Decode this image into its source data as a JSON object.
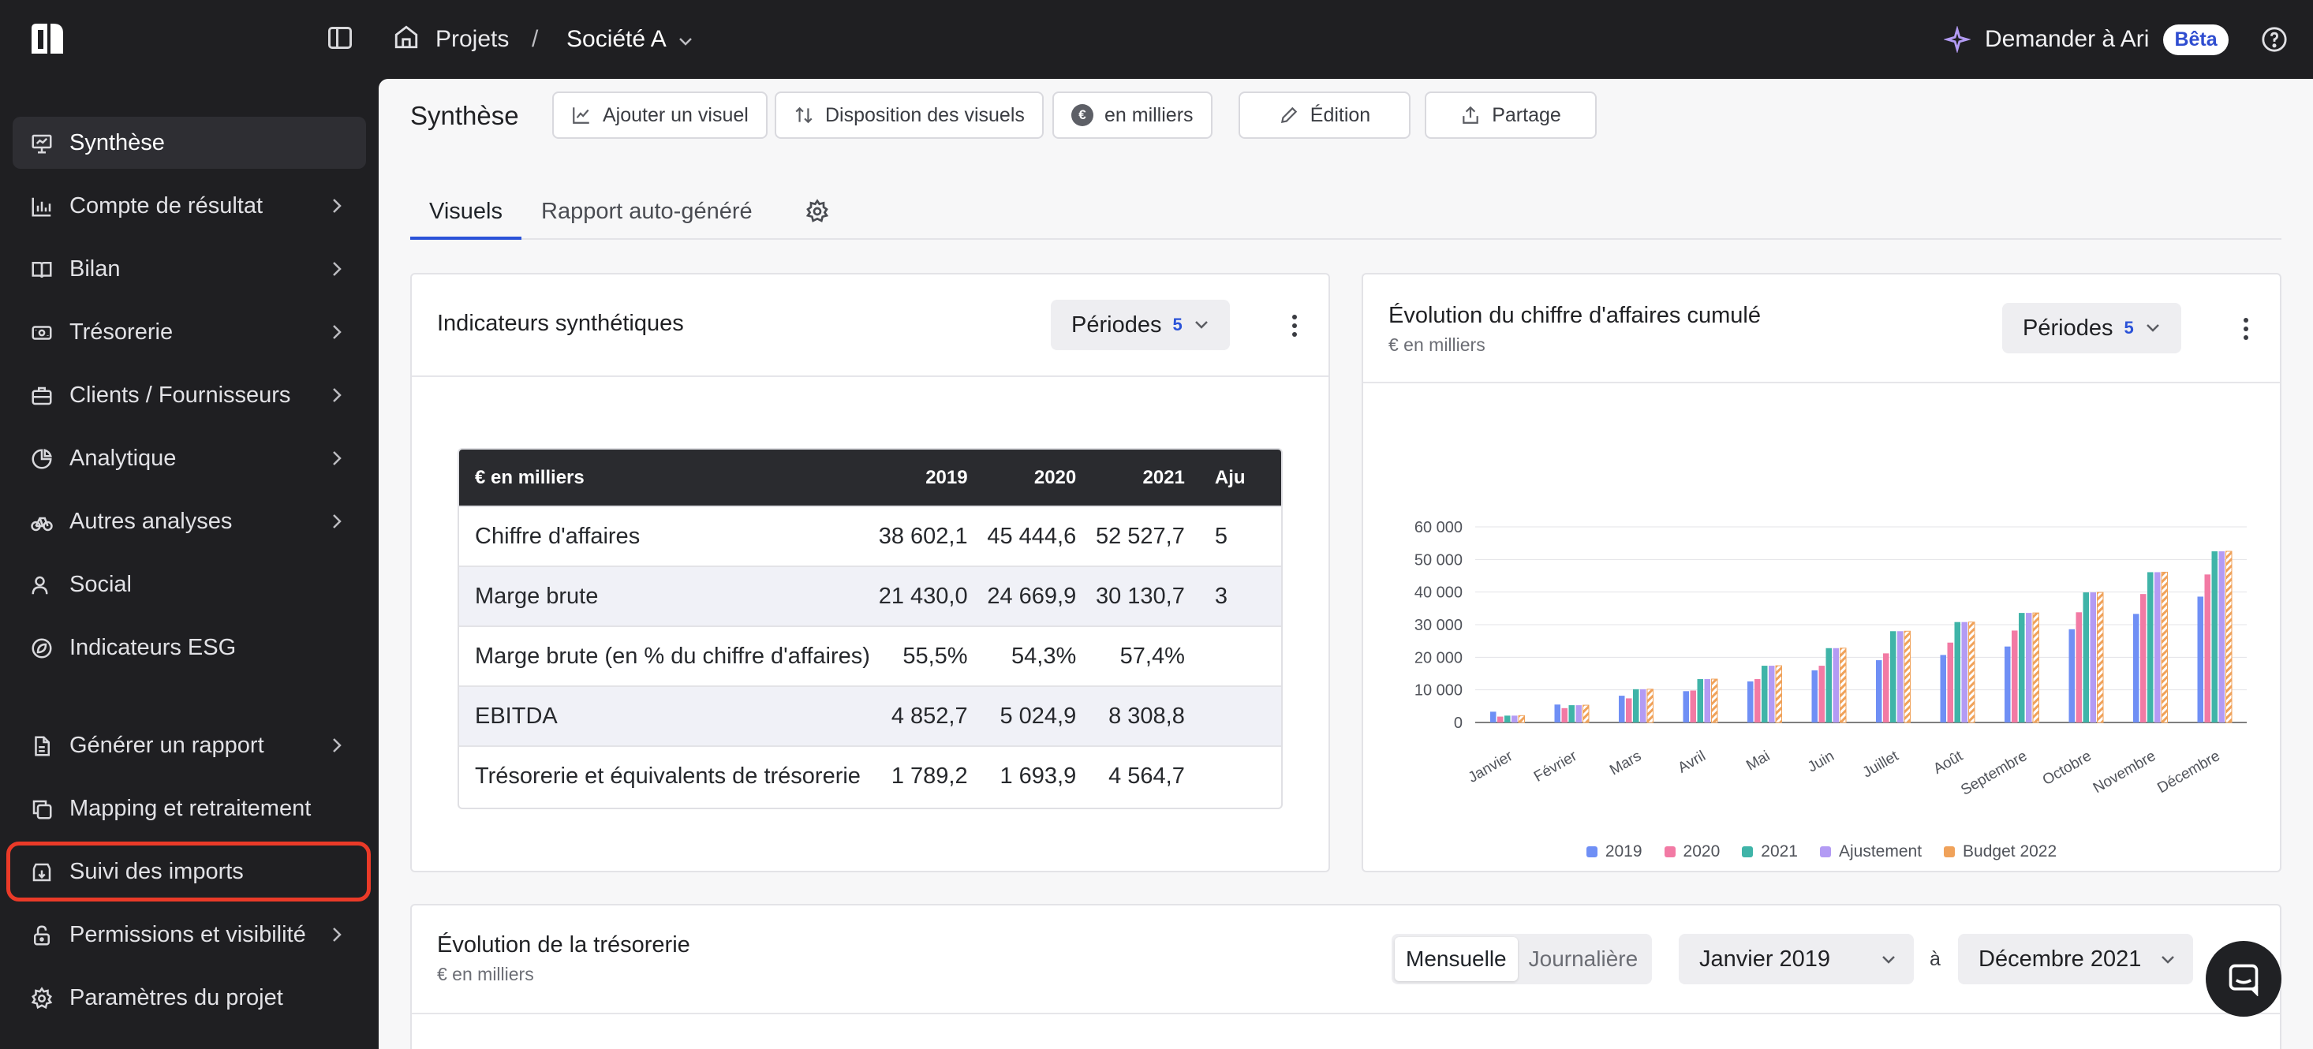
{
  "topbar": {
    "breadcrumb_projects": "Projets",
    "breadcrumb_separator": "/",
    "breadcrumb_company": "Société A",
    "ask_label": "Demander à Ari",
    "beta_label": "Bêta"
  },
  "sidebar": {
    "items": [
      {
        "label": "Synthèse",
        "icon": "presentation-icon",
        "chevron": false,
        "active": true
      },
      {
        "label": "Compte de résultat",
        "icon": "bar-chart-icon",
        "chevron": true
      },
      {
        "label": "Bilan",
        "icon": "book-icon",
        "chevron": true
      },
      {
        "label": "Trésorerie",
        "icon": "banknote-icon",
        "chevron": true
      },
      {
        "label": "Clients / Fournisseurs",
        "icon": "briefcase-icon",
        "chevron": true
      },
      {
        "label": "Analytique",
        "icon": "pie-chart-icon",
        "chevron": true
      },
      {
        "label": "Autres analyses",
        "icon": "bike-icon",
        "chevron": true
      },
      {
        "label": "Social",
        "icon": "users-icon",
        "chevron": false
      },
      {
        "label": "Indicateurs ESG",
        "icon": "leaf-icon",
        "chevron": false
      },
      {
        "label": "Générer un rapport",
        "icon": "file-icon",
        "chevron": true
      },
      {
        "label": "Mapping et retraitement",
        "icon": "copy-icon",
        "chevron": false
      },
      {
        "label": "Suivi des imports",
        "icon": "import-icon",
        "chevron": false,
        "highlighted": true
      },
      {
        "label": "Permissions et visibilité",
        "icon": "lock-icon",
        "chevron": true
      },
      {
        "label": "Paramètres du projet",
        "icon": "gear-icon",
        "chevron": false
      }
    ]
  },
  "toolbar": {
    "title": "Synthèse",
    "add_visual": "Ajouter un visuel",
    "layout": "Disposition des visuels",
    "unit_badge": "€",
    "unit": "en milliers",
    "edit": "Édition",
    "share": "Partage"
  },
  "tabs": {
    "visuals": "Visuels",
    "report": "Rapport auto-généré"
  },
  "indicators_card": {
    "title": "Indicateurs synthétiques",
    "periods_label": "Périodes",
    "periods_count": "5",
    "table": {
      "headers": [
        "€ en milliers",
        "2019",
        "2020",
        "2021",
        "Aju"
      ],
      "rows": [
        [
          "Chiffre d'affaires",
          "38 602,1",
          "45 444,6",
          "52 527,7",
          "5"
        ],
        [
          "Marge brute",
          "21 430,0",
          "24 669,9",
          "30 130,7",
          "3"
        ],
        [
          "Marge brute (en % du chiffre d'affaires)",
          "55,5%",
          "54,3%",
          "57,4%",
          ""
        ],
        [
          "EBITDA",
          "4 852,7",
          "5 024,9",
          "8 308,8",
          ""
        ],
        [
          "Trésorerie et équivalents de trésorerie",
          "1 789,2",
          "1 693,9",
          "4 564,7",
          ""
        ]
      ]
    }
  },
  "revenue_card": {
    "title": "Évolution du chiffre d'affaires cumulé",
    "subtitle": "€ en milliers",
    "periods_label": "Périodes",
    "periods_count": "5"
  },
  "cash_card": {
    "title": "Évolution de la trésorerie",
    "subtitle": "€ en milliers",
    "mode_monthly": "Mensuelle",
    "mode_daily": "Journalière",
    "from": "Janvier 2019",
    "to_label": "à",
    "to": "Décembre 2021"
  },
  "colors": {
    "accent": "#2a52d8",
    "highlight": "#ea3a28"
  },
  "chart_data": {
    "type": "bar",
    "title": "Évolution du chiffre d'affaires cumulé",
    "subtitle": "€ en milliers",
    "categories": [
      "Janvier",
      "Février",
      "Mars",
      "Avril",
      "Mai",
      "Juin",
      "Juillet",
      "Août",
      "Septembre",
      "Octobre",
      "Novembre",
      "Décembre"
    ],
    "ylim": [
      0,
      60000
    ],
    "yticks": [
      "0",
      "10 000",
      "20 000",
      "30 000",
      "40 000",
      "50 000",
      "60 000"
    ],
    "grid": true,
    "legend_position": "bottom",
    "series": [
      {
        "name": "2019",
        "color": "#6f8ff5",
        "values": [
          3300,
          5500,
          8200,
          9600,
          12600,
          16000,
          19100,
          20700,
          23300,
          28600,
          33300,
          38600
        ]
      },
      {
        "name": "2020",
        "color": "#f27aa4",
        "values": [
          1800,
          4400,
          7400,
          9800,
          13300,
          17400,
          21200,
          24500,
          28200,
          33800,
          39400,
          45400
        ]
      },
      {
        "name": "2021",
        "color": "#3fb4a8",
        "values": [
          2100,
          5300,
          10200,
          13300,
          17400,
          22800,
          28000,
          30800,
          33600,
          39900,
          46100,
          52500
        ]
      },
      {
        "name": "Ajustement",
        "color": "#b39bf4",
        "values": [
          2100,
          5300,
          10200,
          13300,
          17400,
          22800,
          28000,
          30800,
          33600,
          39900,
          46100,
          52500
        ]
      },
      {
        "name": "Budget 2022",
        "color": "#f0a25a",
        "hatched": true,
        "values": [
          2100,
          5300,
          10200,
          13300,
          17400,
          22800,
          28000,
          30800,
          33600,
          39900,
          46100,
          52500
        ]
      }
    ]
  }
}
